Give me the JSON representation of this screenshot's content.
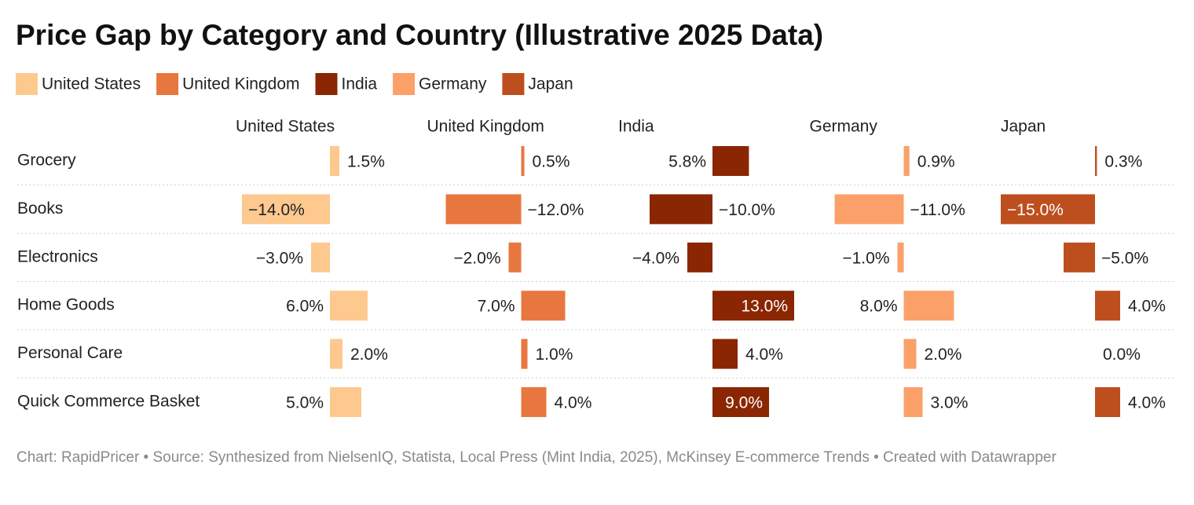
{
  "chart_data": {
    "type": "bar",
    "orientation": "horizontal",
    "title": "Price Gap by Category and Country (Illustrative 2025 Data)",
    "footer": "Chart: RapidPricer • Source: Synthesized from NielsenIQ, Statista, Local Press (Mint India, 2025), McKinsey E-commerce Trends • Created with Datawrapper",
    "categories": [
      "Grocery",
      "Books",
      "Electronics",
      "Home Goods",
      "Personal Care",
      "Quick Commerce Basket"
    ],
    "xlim": [
      -15,
      15
    ],
    "series": [
      {
        "name": "United States",
        "color": "#fdc98f",
        "values": [
          1.5,
          -14.0,
          -3.0,
          6.0,
          2.0,
          5.0
        ],
        "value_labels": [
          "1.5%",
          "−14.0%",
          "−3.0%",
          "6.0%",
          "2.0%",
          "5.0%"
        ]
      },
      {
        "name": "United Kingdom",
        "color": "#e8773f",
        "values": [
          0.5,
          -12.0,
          -2.0,
          7.0,
          1.0,
          4.0
        ],
        "value_labels": [
          "0.5%",
          "−12.0%",
          "−2.0%",
          "7.0%",
          "1.0%",
          "4.0%"
        ]
      },
      {
        "name": "India",
        "color": "#8a2602",
        "values": [
          5.8,
          -10.0,
          -4.0,
          13.0,
          4.0,
          9.0
        ],
        "value_labels": [
          "5.8%",
          "−10.0%",
          "−4.0%",
          "13.0%",
          "4.0%",
          "9.0%"
        ]
      },
      {
        "name": "Germany",
        "color": "#fca06a",
        "values": [
          0.9,
          -11.0,
          -1.0,
          8.0,
          2.0,
          3.0
        ],
        "value_labels": [
          "0.9%",
          "−11.0%",
          "−1.0%",
          "8.0%",
          "2.0%",
          "3.0%"
        ]
      },
      {
        "name": "Japan",
        "color": "#bd4f1f",
        "values": [
          0.3,
          -15.0,
          -5.0,
          4.0,
          0.0,
          4.0
        ],
        "value_labels": [
          "0.3%",
          "−15.0%",
          "−5.0%",
          "4.0%",
          "0.0%",
          "4.0%"
        ]
      }
    ]
  }
}
